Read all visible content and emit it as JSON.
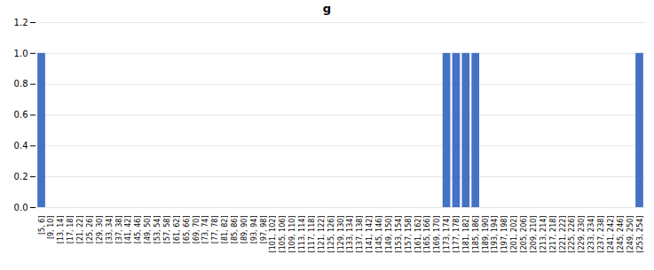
{
  "chart_data": {
    "type": "bar",
    "title": "g",
    "categories": [
      "[5, 6]",
      "[9, 10]",
      "[13, 14]",
      "[17, 18]",
      "[21, 22]",
      "[25, 26]",
      "[29, 30]",
      "[33, 34]",
      "[37, 38]",
      "[41, 42]",
      "[45, 46]",
      "[49, 50]",
      "[53, 54]",
      "[57, 58]",
      "[61, 62]",
      "[65, 66]",
      "[69, 70]",
      "[73, 74]",
      "[77, 78]",
      "[81, 82]",
      "[85, 86]",
      "[89, 90]",
      "[93, 94]",
      "[97, 98]",
      "[101, 102]",
      "[105, 106]",
      "[109, 110]",
      "[113, 114]",
      "[117, 118]",
      "[121, 122]",
      "[125, 126]",
      "[129, 130]",
      "[133, 134]",
      "[137, 138]",
      "[141, 142]",
      "[145, 146]",
      "[149, 150]",
      "[153, 154]",
      "[157, 158]",
      "[161, 162]",
      "[165, 166]",
      "[169, 170]",
      "[173, 174]",
      "[177, 178]",
      "[181, 182]",
      "[185, 186]",
      "[189, 190]",
      "[193, 194]",
      "[197, 198]",
      "[201, 202]",
      "[205, 206]",
      "[209, 210]",
      "[213, 214]",
      "[217, 218]",
      "[221, 222]",
      "[225, 226]",
      "[229, 230]",
      "[233, 234]",
      "[237, 238]",
      "[241, 242]",
      "[245, 246]",
      "[249, 250]",
      "[253, 254]"
    ],
    "values": [
      1,
      0,
      0,
      0,
      0,
      0,
      0,
      0,
      0,
      0,
      0,
      0,
      0,
      0,
      0,
      0,
      0,
      0,
      0,
      0,
      0,
      0,
      0,
      0,
      0,
      0,
      0,
      0,
      0,
      0,
      0,
      0,
      0,
      0,
      0,
      0,
      0,
      0,
      0,
      0,
      0,
      0,
      1,
      1,
      1,
      1,
      0,
      0,
      0,
      0,
      0,
      0,
      0,
      0,
      0,
      0,
      0,
      0,
      0,
      0,
      0,
      0,
      1
    ],
    "color": "#4472c4",
    "ylim": [
      0,
      1.2
    ],
    "yticks": [
      {
        "value": 0,
        "label": "0.0"
      },
      0.2,
      0.4,
      0.6,
      0.8,
      {
        "value": 1.0,
        "label": "1.0"
      },
      1.2
    ],
    "grid": true
  }
}
